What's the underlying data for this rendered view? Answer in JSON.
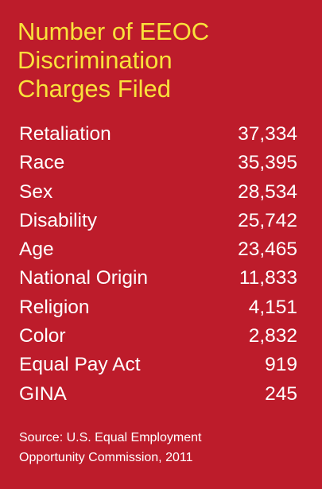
{
  "chart_data": {
    "type": "table",
    "title_lines": [
      "Number of EEOC",
      "Discrimination",
      "Charges Filed"
    ],
    "categories": [
      "Retaliation",
      "Race",
      "Sex",
      "Disability",
      "Age",
      "National Origin",
      "Religion",
      "Color",
      "Equal Pay Act",
      "GINA"
    ],
    "values": [
      37334,
      35395,
      28534,
      25742,
      23465,
      11833,
      4151,
      2832,
      919,
      245
    ],
    "value_labels": [
      "37,334",
      "35,395",
      "28,534",
      "25,742",
      "23,465",
      "11,833",
      "4,151",
      "2,832",
      "919",
      "245"
    ],
    "source_lines": [
      "Source: U.S. Equal Employment",
      "Opportunity Commission, 2011"
    ]
  },
  "colors": {
    "background": "#bd1c2b",
    "title": "#f9e23b",
    "text": "#ffffff"
  }
}
